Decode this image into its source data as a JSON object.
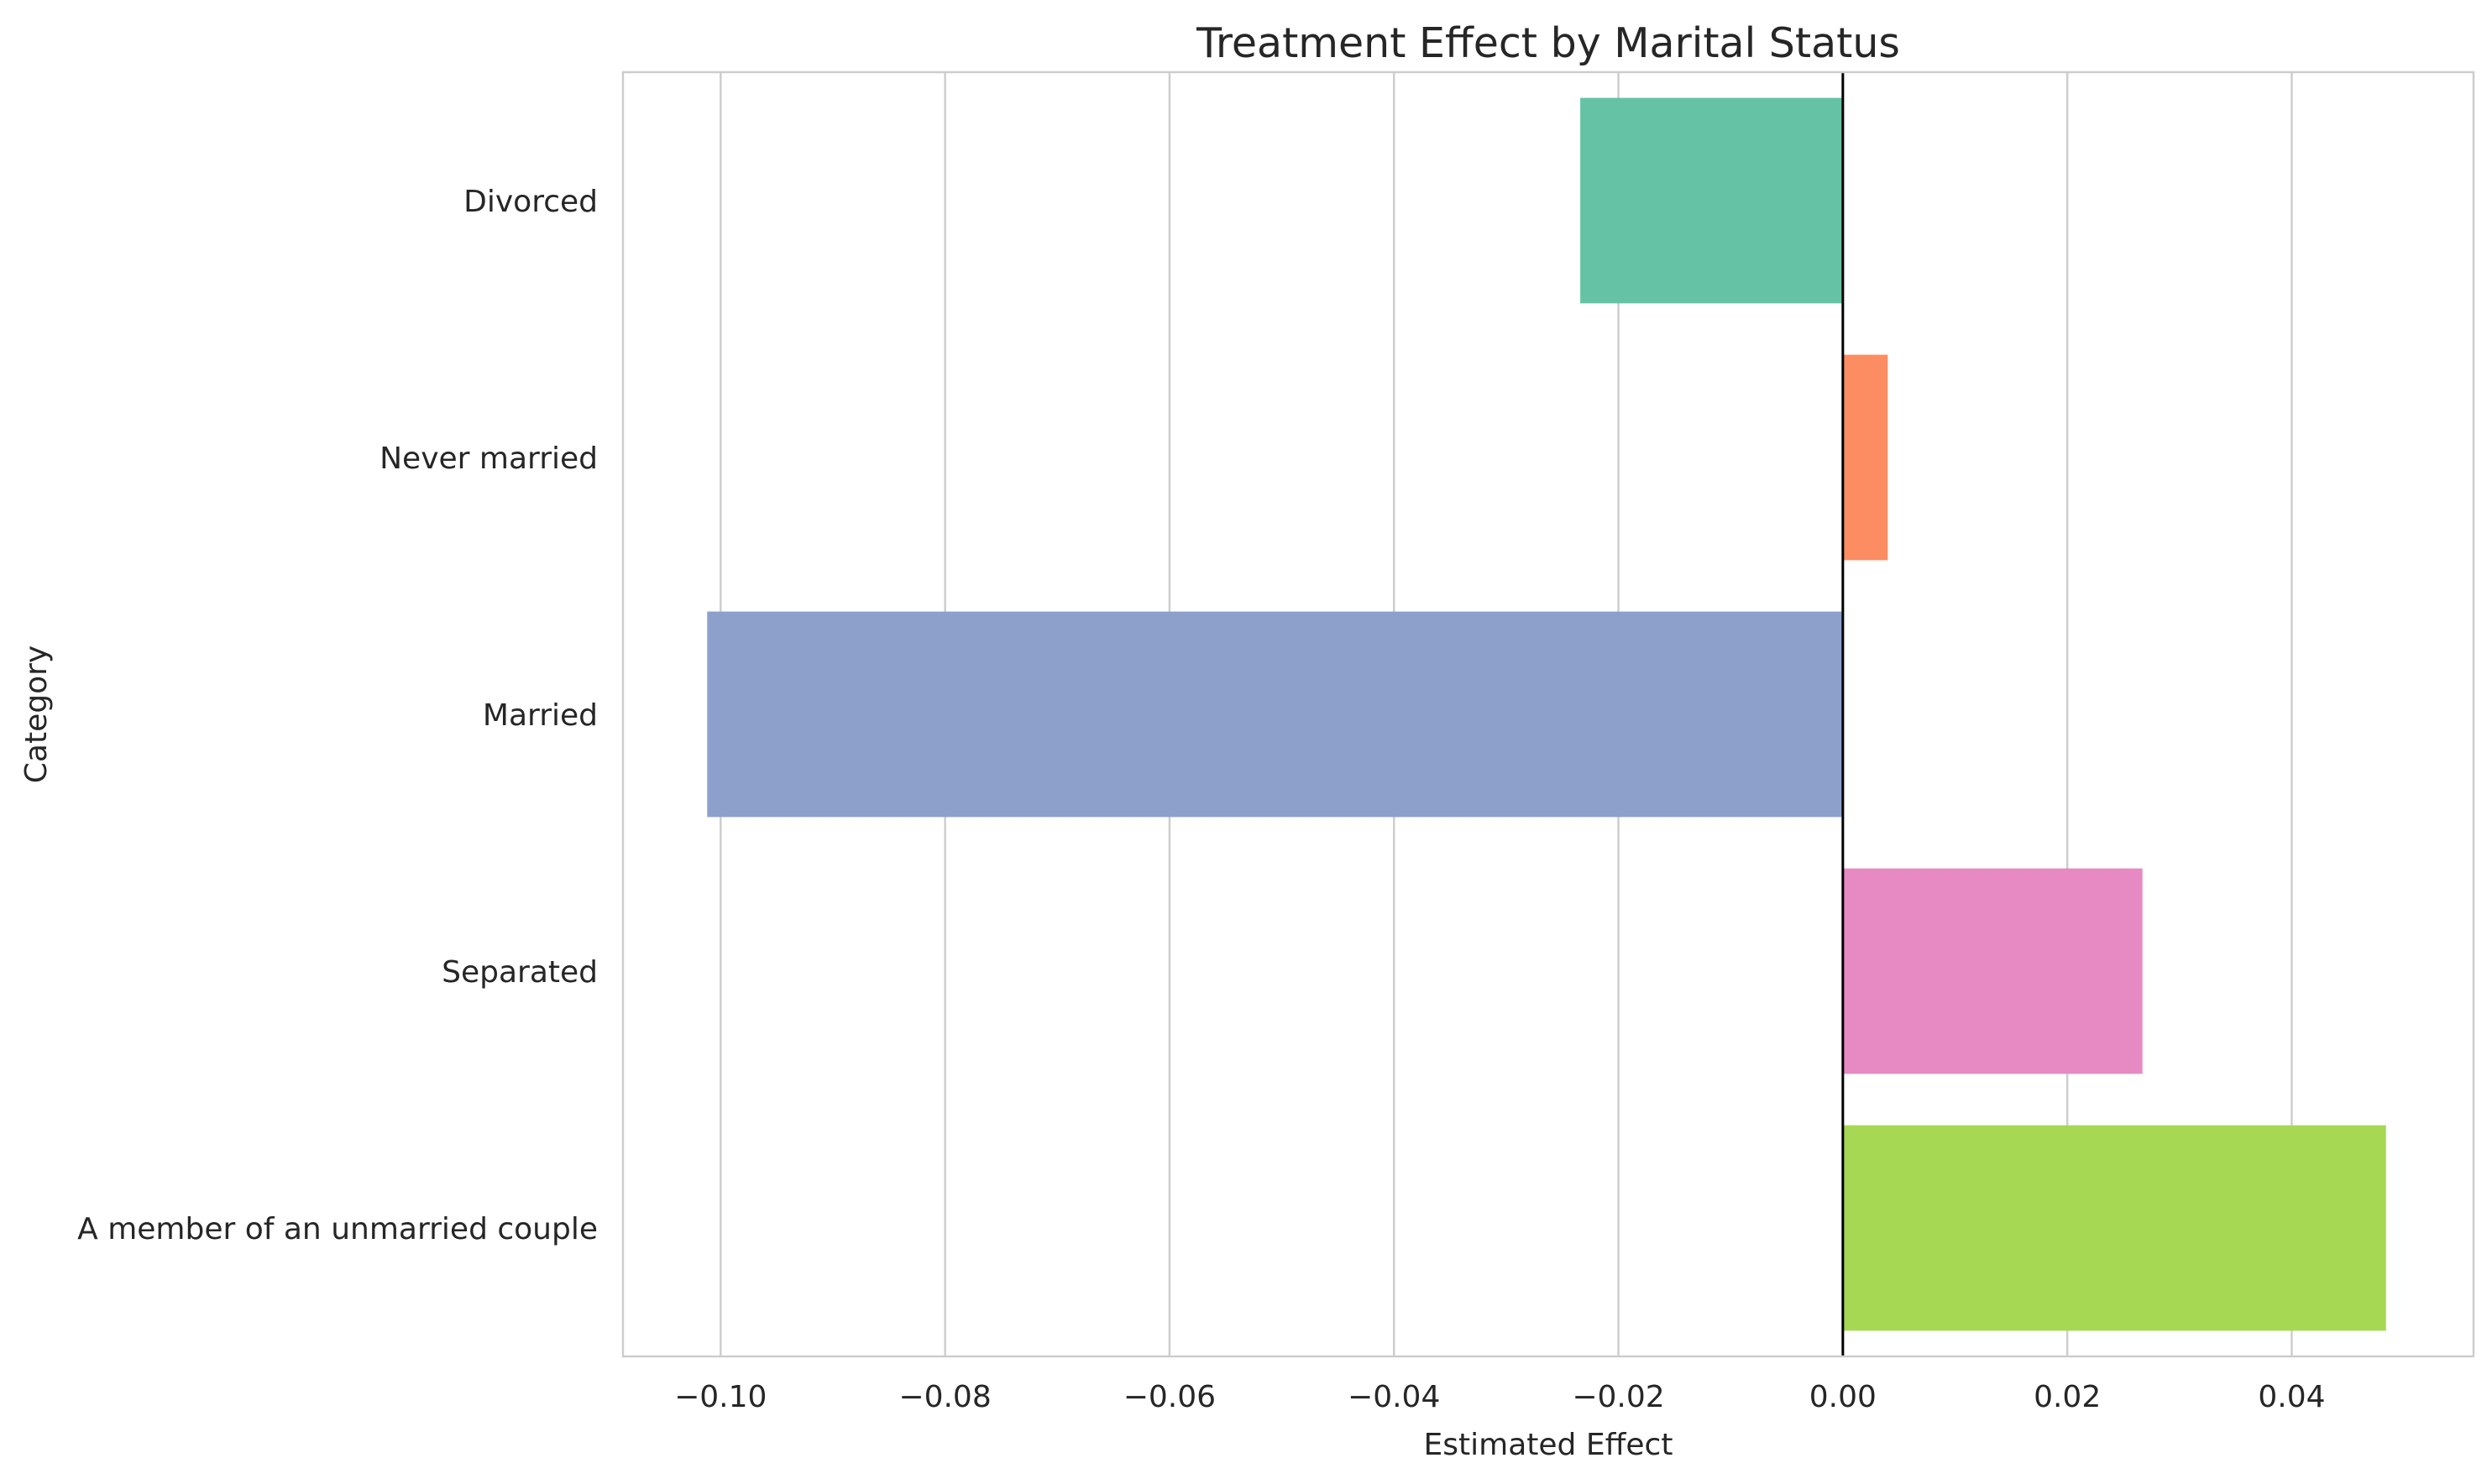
{
  "chart_data": {
    "type": "bar",
    "orientation": "horizontal",
    "title": "Treatment Effect by Marital Status",
    "xlabel": "Estimated Effect",
    "ylabel": "Category",
    "xlim": [
      -0.1087,
      0.0562
    ],
    "xticks": [
      -0.1,
      -0.08,
      -0.06,
      -0.04,
      -0.02,
      0.0,
      0.02,
      0.04
    ],
    "xtick_labels": [
      "−0.10",
      "−0.08",
      "−0.06",
      "−0.04",
      "−0.02",
      "0.00",
      "0.02",
      "0.04"
    ],
    "grid": "vertical",
    "reference_line_x": 0,
    "categories": [
      "Divorced",
      "Never married",
      "Married",
      "Separated",
      "A member of an unmarried couple"
    ],
    "values": [
      -0.0234,
      0.004,
      -0.1012,
      0.0267,
      0.0484
    ],
    "colors": [
      "#66c2a5",
      "#fc8d62",
      "#8da0cb",
      "#e78ac3",
      "#a6d854"
    ]
  }
}
